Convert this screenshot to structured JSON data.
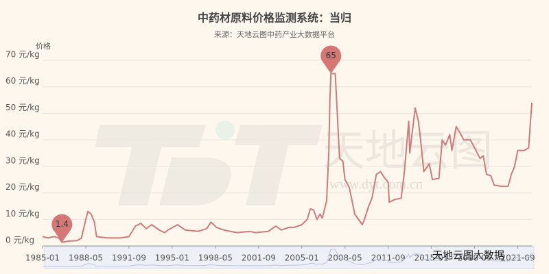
{
  "chart_data": {
    "type": "line",
    "title": "中药材原料价格监测系统：当归",
    "subtitle": "来源：天地云图中药产业大数据平台",
    "y_axis_label": "价格",
    "watermarks": [
      "天地云图",
      "www.dyt.com.cn",
      "天地云图大数据"
    ],
    "x": [
      "1985-01",
      "1985-06",
      "1985-12",
      "1986-04",
      "1986-07",
      "1987-01",
      "1987-09",
      "1988-01",
      "1988-05",
      "1988-07",
      "1988-10",
      "1989-01",
      "1989-03",
      "1990-01",
      "1991-01",
      "1991-09",
      "1992-03",
      "1992-08",
      "1993-01",
      "1993-06",
      "1994-01",
      "1994-06",
      "1994-09",
      "1995-06",
      "1996-01",
      "1997-01",
      "1997-09",
      "1998-01",
      "1998-06",
      "1999-01",
      "2000-01",
      "2001-01",
      "2001-06",
      "2002-06",
      "2003-01",
      "2003-06",
      "2004-01",
      "2004-06",
      "2005-01",
      "2005-06",
      "2005-09",
      "2005-12",
      "2006-03",
      "2006-06",
      "2006-08",
      "2006-12",
      "2007-02",
      "2007-03",
      "2007-04",
      "2007-08",
      "2007-12",
      "2008-03",
      "2008-05",
      "2008-09",
      "2009-02",
      "2009-09",
      "2009-11",
      "2010-03",
      "2010-06",
      "2010-10",
      "2011-02",
      "2011-05",
      "2011-09",
      "2011-10",
      "2012-03",
      "2012-09",
      "2012-12",
      "2013-04",
      "2013-05",
      "2013-07",
      "2013-10",
      "2014-01",
      "2014-03",
      "2014-06",
      "2014-11",
      "2015-02",
      "2015-08",
      "2015-11",
      "2016-02",
      "2016-06",
      "2016-08",
      "2016-12",
      "2017-03",
      "2017-07",
      "2018-01",
      "2018-05",
      "2018-10",
      "2019-01",
      "2019-04",
      "2019-08",
      "2019-11",
      "2020-05",
      "2020-12",
      "2021-03",
      "2021-06",
      "2021-09",
      "2022-03",
      "2022-07",
      "2022-10"
    ],
    "series": [
      {
        "name": "当归",
        "color": "#d07a7a",
        "values": [
          3.5,
          3,
          3.5,
          3,
          1.4,
          1.8,
          2,
          3,
          10,
          13,
          12,
          9,
          3.5,
          3,
          3,
          3.5,
          7.5,
          8.5,
          6.5,
          8,
          6,
          5,
          6,
          8,
          6,
          5.5,
          6.5,
          9,
          7,
          6,
          5,
          5.5,
          5,
          5.5,
          7.5,
          6,
          7,
          7,
          8,
          10,
          14,
          13.5,
          10,
          12,
          10.5,
          17,
          35,
          55,
          65,
          65,
          33,
          32,
          25,
          22,
          12,
          8,
          10,
          15,
          18,
          27,
          28,
          26,
          24,
          16.5,
          17.5,
          18,
          28,
          47,
          35,
          42,
          52,
          47,
          40,
          28,
          31,
          25,
          25.5,
          40,
          38,
          42,
          36,
          45,
          43,
          40,
          40,
          37,
          33,
          34,
          27,
          26.5,
          23,
          22.5,
          22.5,
          27,
          30,
          36,
          36,
          37,
          54
        ]
      }
    ],
    "mark_points": [
      {
        "x": "2007-04",
        "value": 65
      },
      {
        "x": "1986-07",
        "value": 1.4
      }
    ],
    "xlim": [
      "1985-01",
      "2022-10"
    ],
    "xticks": [
      "1985-01",
      "1988-05",
      "1991-09",
      "1995-01",
      "1998-05",
      "2001-09",
      "2005-01",
      "2008-05",
      "2011-09",
      "2015-01",
      "2018-05",
      "2021-09"
    ],
    "ylim": [
      0,
      70
    ],
    "yticks": [
      {
        "value": 0,
        "label": "0 元/kg"
      },
      {
        "value": 10,
        "label": "10 元/kg"
      },
      {
        "value": 20,
        "label": "20 元/kg"
      },
      {
        "value": 30,
        "label": "30 元/kg"
      },
      {
        "value": 40,
        "label": "40 元/kg"
      },
      {
        "value": 50,
        "label": "50 元/kg"
      },
      {
        "value": 60,
        "label": "60 元/kg"
      },
      {
        "value": 70,
        "label": "70 元/kg"
      }
    ],
    "grid": true
  }
}
